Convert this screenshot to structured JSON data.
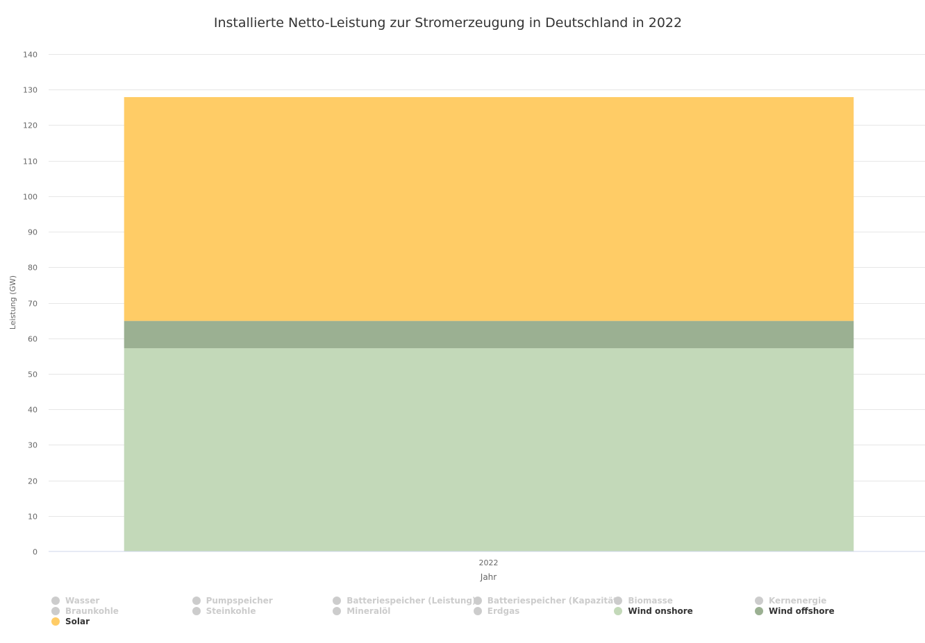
{
  "chart_data": {
    "type": "bar",
    "stacked": true,
    "title": "Installierte Netto-Leistung zur Stromerzeugung in Deutschland in 2022",
    "xlabel": "Jahr",
    "ylabel": "Leistung (GW)",
    "categories": [
      "2022"
    ],
    "ylim": [
      0,
      140
    ],
    "yticks": [
      0,
      10,
      20,
      30,
      40,
      50,
      60,
      70,
      80,
      90,
      100,
      110,
      120,
      130,
      140
    ],
    "grid": true,
    "legend_position": "bottom",
    "series": [
      {
        "name": "Wasser",
        "values": [
          null
        ],
        "visible": false,
        "color": "#cccccc"
      },
      {
        "name": "Pumpspeicher",
        "values": [
          null
        ],
        "visible": false,
        "color": "#cccccc"
      },
      {
        "name": "Batteriespeicher (Leistung)",
        "values": [
          null
        ],
        "visible": false,
        "color": "#cccccc"
      },
      {
        "name": "Batteriespeicher (Kapazität)",
        "values": [
          null
        ],
        "visible": false,
        "color": "#cccccc"
      },
      {
        "name": "Biomasse",
        "values": [
          null
        ],
        "visible": false,
        "color": "#cccccc"
      },
      {
        "name": "Kernenergie",
        "values": [
          null
        ],
        "visible": false,
        "color": "#cccccc"
      },
      {
        "name": "Braunkohle",
        "values": [
          null
        ],
        "visible": false,
        "color": "#cccccc"
      },
      {
        "name": "Steinkohle",
        "values": [
          null
        ],
        "visible": false,
        "color": "#cccccc"
      },
      {
        "name": "Mineralöl",
        "values": [
          null
        ],
        "visible": false,
        "color": "#cccccc"
      },
      {
        "name": "Erdgas",
        "values": [
          null
        ],
        "visible": false,
        "color": "#cccccc"
      },
      {
        "name": "Wind onshore",
        "values": [
          57.2
        ],
        "visible": true,
        "color": "#c3d9b9"
      },
      {
        "name": "Wind offshore",
        "values": [
          7.7
        ],
        "visible": true,
        "color": "#9bb092"
      },
      {
        "name": "Solar",
        "values": [
          63.0
        ],
        "visible": true,
        "color": "#ffcc66"
      }
    ]
  }
}
